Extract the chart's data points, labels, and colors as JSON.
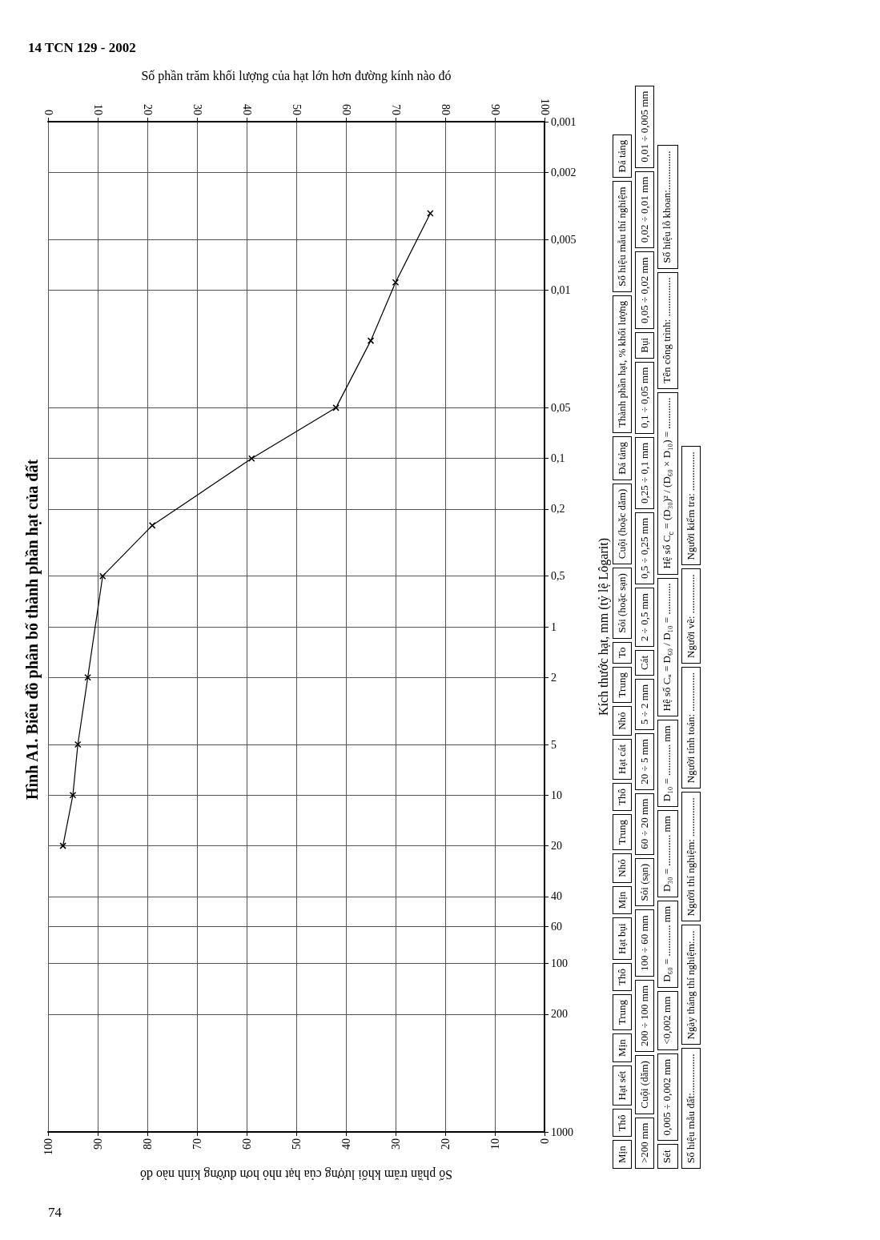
{
  "chart_data": {
    "type": "line",
    "title": "Hình A1. Biểu đồ phân bố thành phần hạt của đất",
    "xlabel": "Số phần trăm khối lượng của hạt nhỏ hơn đường kính nào đó",
    "x2label": "Số phần trăm khối lượng của hạt lớn hơn đường kính nào đó",
    "ylabel": "Kích thước hạt, mm (tỷ lệ Lôgarit)",
    "series": [
      {
        "color": "#000000",
        "x": [
          97,
          95,
          94,
          92,
          89,
          79,
          59,
          42,
          35,
          30,
          23
        ],
        "values": [
          20,
          10,
          5,
          2,
          0.5,
          0.25,
          0.1,
          0.05,
          0.02,
          0.009,
          0.0035
        ]
      }
    ],
    "xlim": [
      100,
      0
    ],
    "xticks": [
      100,
      90,
      80,
      70,
      60,
      50,
      40,
      30,
      20,
      10,
      0
    ],
    "x2lim": [
      0,
      100
    ],
    "x2ticks": [
      0,
      10,
      20,
      30,
      40,
      50,
      60,
      70,
      80,
      90,
      100
    ],
    "ylim": [
      1000,
      0.001
    ],
    "yticks": [
      {
        "value": 0.001,
        "label": "0,001"
      },
      {
        "value": 0.002,
        "label": "0,002"
      },
      {
        "value": 0.005,
        "label": "0,005"
      },
      {
        "value": 0.01,
        "label": "0,01"
      },
      {
        "value": 0.05,
        "label": "0,05"
      },
      {
        "value": 0.1,
        "label": "0,1"
      },
      {
        "value": 0.2,
        "label": "0,2"
      },
      {
        "value": 0.5,
        "label": "0,5"
      },
      1,
      2,
      5,
      10,
      20,
      40,
      60,
      100,
      200,
      1000
    ],
    "log": "y",
    "grid": true,
    "marker": "cross",
    "line_style": "solid",
    "annotations": [
      "14 TCN 129 - 2002",
      "74",
      "Mịn",
      "Thô",
      "Hạt sét",
      "Mịn",
      "Trung",
      "Thô",
      "Hạt bụi",
      "Mịn",
      "Nhỏ",
      "Trung",
      "Thô",
      "Hạt cát",
      "Nhỏ",
      "Trung",
      "To",
      "Sỏi (hoặc sạn)",
      "Cuội (hoặc dăm)",
      "Đá tảng",
      "Thành phần hạt, % khối lượng",
      "Số hiệu mẫu thí nghiệm",
      "Đá tảng",
      ">200 mm",
      "Cuội (dăm)",
      "200 ÷ 100 mm",
      "100 ÷ 60 mm",
      "Sỏi (sạn)",
      "60 ÷ 20 mm",
      "20 ÷ 5 mm",
      "5 ÷ 2 mm",
      "Cát",
      "2 ÷ 0,5 mm",
      "0,5 ÷ 0,25 mm",
      "0,25 ÷ 0,1 mm",
      "0,1 ÷ 0,05 mm",
      "Bụi",
      "0,05 ÷ 0,02 mm",
      "0,02 ÷ 0,01 mm",
      "0,01 ÷ 0,005 mm",
      "Sét",
      "0,005 ÷ 0,002 mm",
      "<0,002 mm",
      "D₆₀ = ............ mm",
      "D₃₀ = ............ mm",
      "D₁₀ = ............ mm",
      "Hệ số Cᵤ = D₆₀ / D₁₀ = ............",
      "Hệ số C$_{c}$ = (D₃₀)² / (D₆₀ × D₁₀) = ............",
      "Tên công trình: ...............",
      "Số hiệu lỗ khoan:...............",
      "Số hiệu mẫu đất:...............",
      "Ngày tháng thí nghiệm:....",
      "Người thí nghiệm: ...............",
      "Người tính toán: ...............",
      "Người vẽ: ...............",
      "Người kiểm tra: ..............."
    ]
  }
}
